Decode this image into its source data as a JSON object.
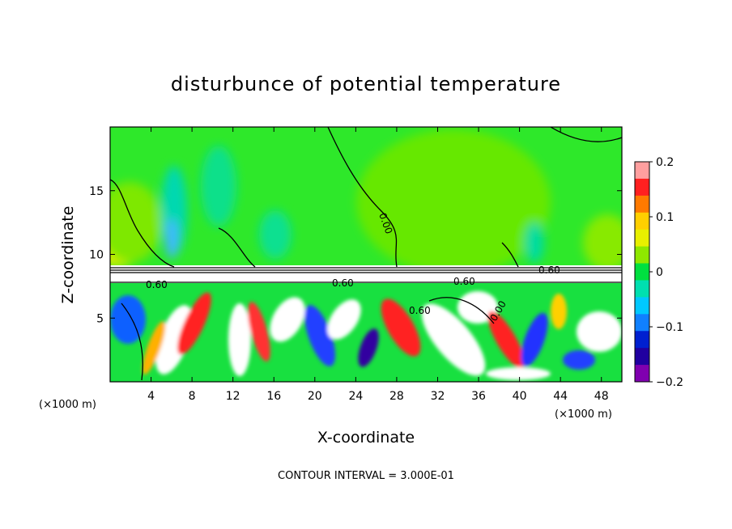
{
  "chart_data": {
    "type": "heatmap",
    "title": "disturbunce of potential temperature",
    "xlabel": "X-coordinate",
    "ylabel": "Z-coordinate",
    "x_unit": "(×1000 m)",
    "z_unit": "(×1000 m)",
    "xlim": [
      0,
      50
    ],
    "ylim": [
      0,
      20
    ],
    "x_ticks": [
      4,
      8,
      12,
      16,
      20,
      24,
      28,
      32,
      36,
      40,
      44,
      48
    ],
    "y_ticks": [
      5,
      10,
      15
    ],
    "colorbar": {
      "range": [
        -0.2,
        0.2
      ],
      "tick_values": [
        0.2,
        0.1,
        0,
        -0.1,
        -0.2
      ],
      "tick_labels": [
        "0.2",
        "0.1",
        "0",
        "−0.1",
        "−0.2"
      ],
      "colors": [
        "#ff9f9f",
        "#ff2020",
        "#ff7a00",
        "#ffd000",
        "#e8f000",
        "#8fe800",
        "#00e040",
        "#00e0b0",
        "#00c8ff",
        "#1080ff",
        "#0020d0",
        "#2000a0",
        "#8000b0"
      ]
    },
    "contour_labels": [
      "0.60",
      "0.60",
      "0.60",
      "0.60",
      "0.60",
      "0.00",
      "0.00"
    ],
    "footer": "CONTOUR INTERVAL = 3.000E-01"
  }
}
